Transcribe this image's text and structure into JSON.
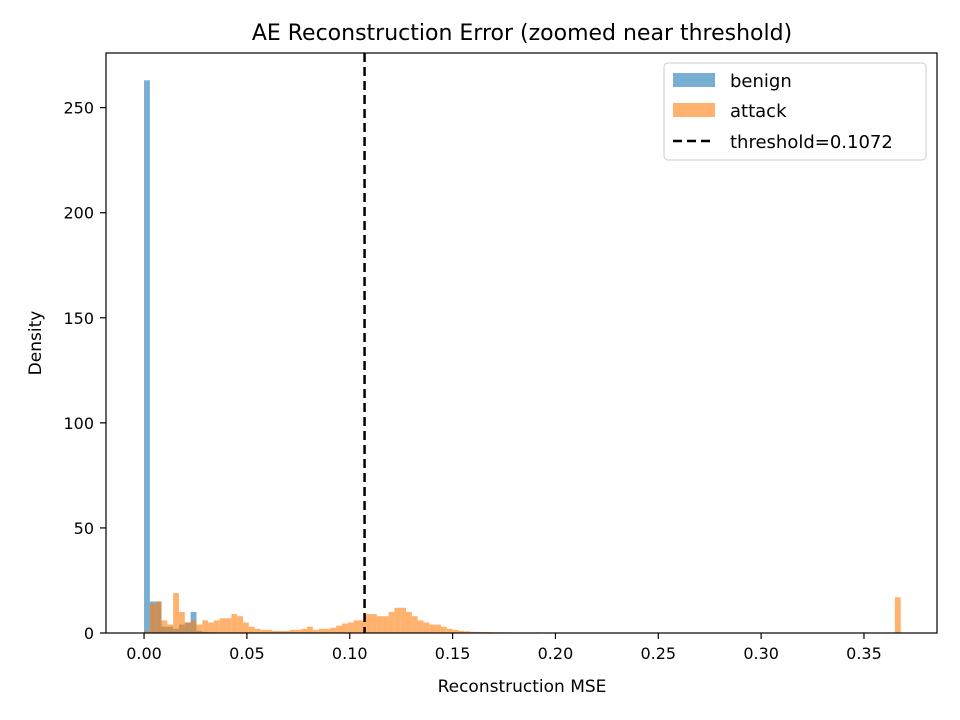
{
  "chart_data": {
    "type": "bar",
    "title": "AE Reconstruction Error (zoomed near threshold)",
    "xlabel": "Reconstruction MSE",
    "ylabel": "Density",
    "xlim": [
      -0.0185,
      0.3855
    ],
    "ylim": [
      0,
      276
    ],
    "xticks": [
      0.0,
      0.05,
      0.1,
      0.15,
      0.2,
      0.25,
      0.3,
      0.35
    ],
    "xtick_labels": [
      "0.00",
      "0.05",
      "0.10",
      "0.15",
      "0.20",
      "0.25",
      "0.30",
      "0.35"
    ],
    "yticks": [
      0,
      50,
      100,
      150,
      200,
      250
    ],
    "ytick_labels": [
      "0",
      "50",
      "100",
      "150",
      "200",
      "250"
    ],
    "grid": false,
    "legend_position": "top-right",
    "bin_width": 0.00283,
    "series": [
      {
        "name": "benign",
        "color": "#1f77b4",
        "opacity": 0.6,
        "bins": [
          [
            0.0,
            263
          ],
          [
            0.00283,
            15
          ],
          [
            0.00566,
            15
          ],
          [
            0.00849,
            3
          ],
          [
            0.01132,
            3
          ],
          [
            0.01415,
            2
          ],
          [
            0.01698,
            4
          ],
          [
            0.01981,
            5
          ],
          [
            0.02264,
            10
          ],
          [
            0.02547,
            1
          ],
          [
            0.0283,
            0.5
          ],
          [
            0.03113,
            0.3
          ]
        ]
      },
      {
        "name": "attack",
        "color": "#ff7f0e",
        "opacity": 0.6,
        "bins": [
          [
            0.0,
            1
          ],
          [
            0.00283,
            14
          ],
          [
            0.00566,
            15
          ],
          [
            0.00849,
            6
          ],
          [
            0.01132,
            4
          ],
          [
            0.01415,
            19
          ],
          [
            0.01698,
            10
          ],
          [
            0.01981,
            5
          ],
          [
            0.02264,
            6
          ],
          [
            0.02547,
            4
          ],
          [
            0.0283,
            6
          ],
          [
            0.03113,
            5
          ],
          [
            0.03396,
            6
          ],
          [
            0.03679,
            7
          ],
          [
            0.03962,
            7
          ],
          [
            0.04245,
            9
          ],
          [
            0.04528,
            8
          ],
          [
            0.04811,
            5
          ],
          [
            0.05094,
            3
          ],
          [
            0.05377,
            2
          ],
          [
            0.0566,
            1.5
          ],
          [
            0.05943,
            1.5
          ],
          [
            0.06226,
            1
          ],
          [
            0.06509,
            1
          ],
          [
            0.06792,
            1
          ],
          [
            0.07075,
            1.5
          ],
          [
            0.07358,
            1.5
          ],
          [
            0.07641,
            2
          ],
          [
            0.07924,
            3
          ],
          [
            0.08207,
            1.5
          ],
          [
            0.0849,
            2
          ],
          [
            0.08773,
            2
          ],
          [
            0.09056,
            2.5
          ],
          [
            0.09339,
            3.5
          ],
          [
            0.09622,
            4.5
          ],
          [
            0.09905,
            5
          ],
          [
            0.10188,
            6
          ],
          [
            0.10471,
            6
          ],
          [
            0.10754,
            9
          ],
          [
            0.11037,
            9
          ],
          [
            0.1132,
            8
          ],
          [
            0.11603,
            8
          ],
          [
            0.11886,
            10
          ],
          [
            0.12169,
            12
          ],
          [
            0.12452,
            12
          ],
          [
            0.12735,
            10
          ],
          [
            0.13018,
            8
          ],
          [
            0.13301,
            6
          ],
          [
            0.13584,
            5
          ],
          [
            0.13867,
            4
          ],
          [
            0.1415,
            4
          ],
          [
            0.14433,
            3
          ],
          [
            0.14716,
            2
          ],
          [
            0.14999,
            1.5
          ],
          [
            0.15282,
            1
          ],
          [
            0.15565,
            0.8
          ],
          [
            0.15848,
            0.6
          ],
          [
            0.16131,
            0.5
          ],
          [
            0.16414,
            0.5
          ],
          [
            0.16697,
            0.4
          ],
          [
            0.1698,
            0.3
          ],
          [
            0.17263,
            0.3
          ],
          [
            0.17546,
            0.3
          ],
          [
            0.17829,
            0.2
          ],
          [
            0.18112,
            0.2
          ],
          [
            0.19,
            0.3
          ],
          [
            0.19566,
            0.2
          ],
          [
            0.20132,
            0.2
          ],
          [
            0.21,
            0.2
          ],
          [
            0.21566,
            0.2
          ],
          [
            0.23,
            0.2
          ],
          [
            0.36503,
            17
          ]
        ]
      }
    ],
    "reference_line": {
      "name": "threshold=0.1072",
      "x": 0.1072,
      "style": "dashed",
      "color": "#000000"
    }
  }
}
